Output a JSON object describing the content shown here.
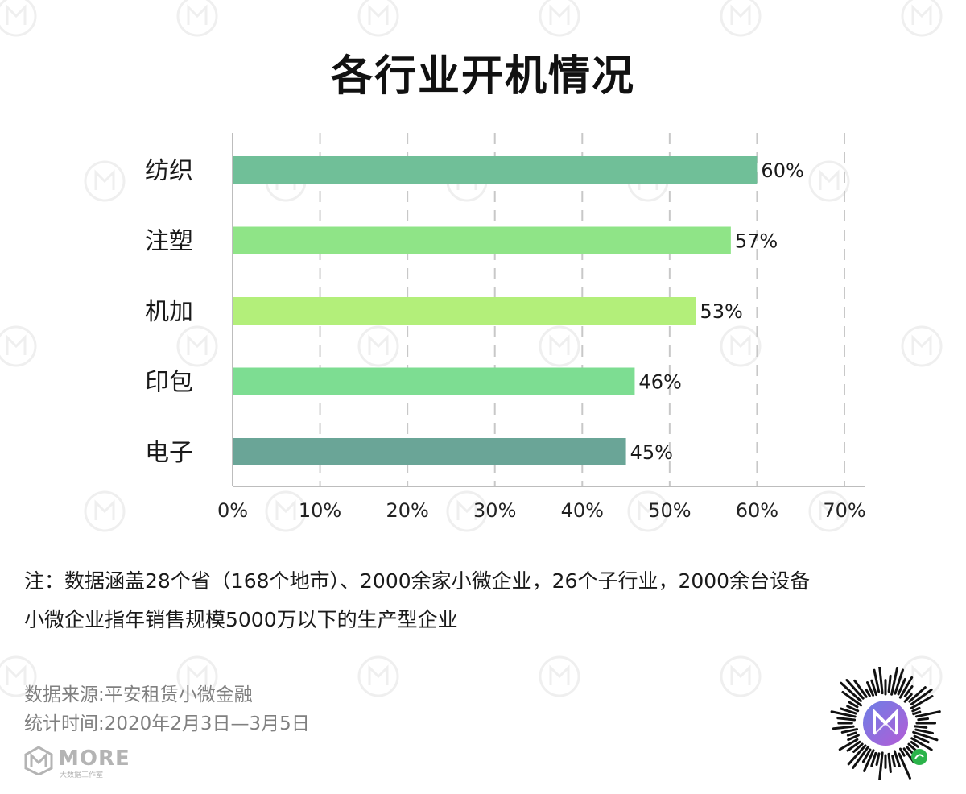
{
  "title": "各行业开机情况",
  "chart_data": {
    "type": "bar",
    "orientation": "horizontal",
    "title": "各行业开机情况",
    "categories": [
      "纺织",
      "注塑",
      "机加",
      "印包",
      "电子"
    ],
    "values": [
      60,
      57,
      53,
      46,
      45
    ],
    "value_labels": [
      "60%",
      "57%",
      "53%",
      "46%",
      "45%"
    ],
    "bar_colors": [
      "#70bf98",
      "#8fe487",
      "#b3ef7a",
      "#7ddd92",
      "#6aa597"
    ],
    "xlim": [
      0,
      70
    ],
    "x_ticks": [
      "0%",
      "10%",
      "20%",
      "30%",
      "40%",
      "50%",
      "60%",
      "70%"
    ],
    "grid": "vertical-dashed",
    "legend": "none"
  },
  "notes": [
    "注：数据涵盖28个省（168个地市）、2000余家小微企业，26个子行业，2000余台设备",
    "小微企业指年销售规模5000万以下的生产型企业"
  ],
  "source": {
    "line1": "数据来源:平安租赁小微金融",
    "line2": "统计时间:2020年2月3日—3月5日"
  },
  "branding": {
    "logo_text": "MORE",
    "logo_subtext": "大数据工作室",
    "accent": "#9a6ad6",
    "qr_icon": "mini-program-qr-icon"
  }
}
